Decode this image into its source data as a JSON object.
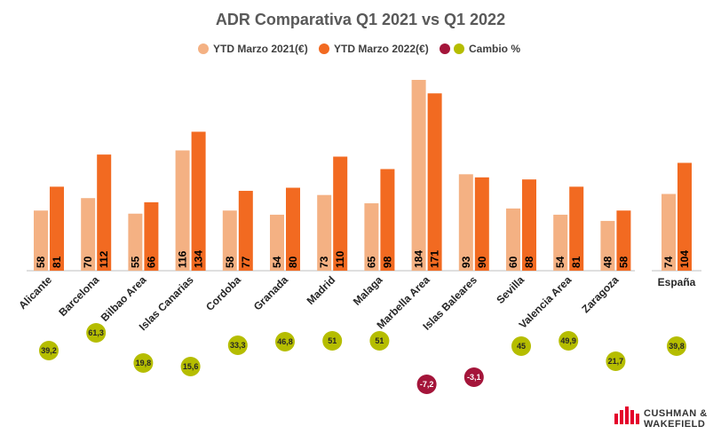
{
  "chart_data": {
    "type": "bar",
    "title": "ADR Comparativa Q1 2021 vs Q1 2022",
    "categories": [
      "Alicante",
      "Barcelona",
      "Bilbao Area",
      "Islas Canarias",
      "Cordoba",
      "Granada",
      "Madrid",
      "Malaga",
      "Marbella Area",
      "Islas Baleares",
      "Sevilla",
      "Valencia Area",
      "Zaragoza"
    ],
    "series": [
      {
        "name": "YTD Marzo 2021(€)",
        "color": "#F4B183",
        "values": [
          58,
          70,
          55,
          116,
          58,
          54,
          73,
          65,
          184,
          93,
          60,
          54,
          48
        ]
      },
      {
        "name": "YTD Marzo 2022(€)",
        "color": "#F26A21",
        "values": [
          81,
          112,
          66,
          134,
          77,
          80,
          110,
          98,
          171,
          90,
          88,
          81,
          58
        ]
      }
    ],
    "change": {
      "name": "Cambio %",
      "values": [
        "39,2",
        "61,3",
        "19,8",
        "15,6",
        "33,3",
        "46,8",
        "51",
        "51",
        "-7,2",
        "-3,1",
        "45",
        "49,9",
        "21,7"
      ],
      "positive_color": "#B5BD00",
      "negative_color": "#A4153A"
    },
    "summary": {
      "category": "España",
      "values": [
        74,
        104
      ],
      "change": "39,8"
    },
    "ylim": [
      0,
      190
    ],
    "grid": false,
    "legend": "top-center"
  },
  "logo": {
    "line1": "CUSHMAN &",
    "line2": "WAKEFIELD",
    "color": "#E4002B"
  }
}
